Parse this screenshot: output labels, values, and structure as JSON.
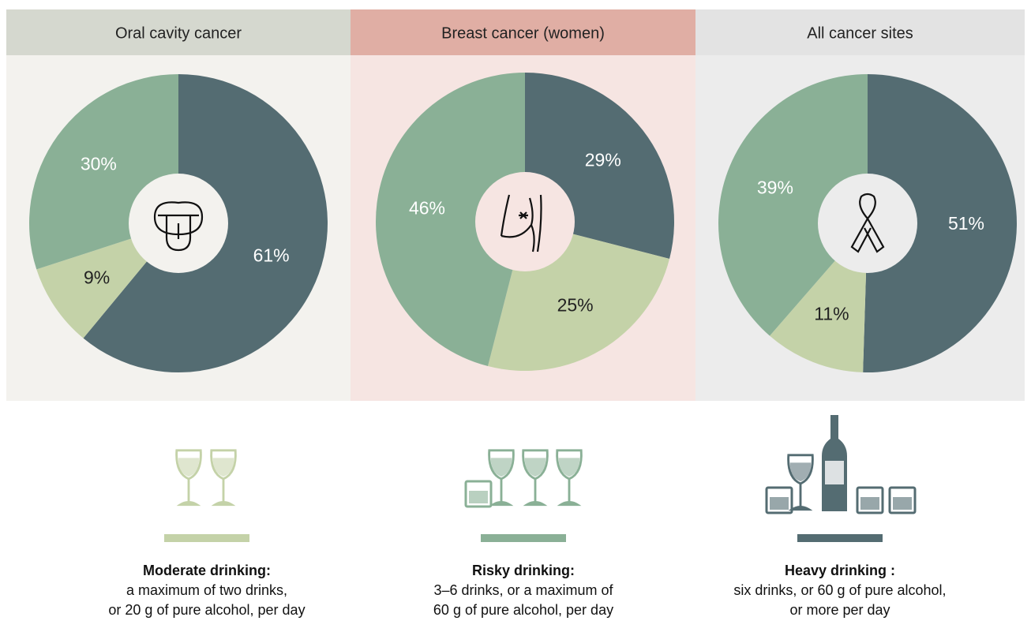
{
  "chart_data": [
    {
      "type": "pie",
      "title": "Oral cavity cancer",
      "values": [
        61,
        9,
        30
      ],
      "value_labels": [
        "61%",
        "9%",
        "30%"
      ],
      "colors": [
        "#546c72",
        "#c4d2a8",
        "#8ab096"
      ]
    },
    {
      "type": "pie",
      "title": "Breast cancer (women)",
      "values": [
        29,
        25,
        46
      ],
      "value_labels": [
        "29%",
        "25%",
        "46%"
      ],
      "colors": [
        "#546c72",
        "#c4d2a8",
        "#8ab096"
      ]
    },
    {
      "type": "pie",
      "title": "All cancer sites",
      "values": [
        51,
        11,
        39
      ],
      "value_labels": [
        "51%",
        "11%",
        "39%"
      ],
      "colors": [
        "#546c72",
        "#c4d2a8",
        "#8ab096"
      ]
    }
  ],
  "drinking_levels": [
    {
      "title": "Moderate drinking:",
      "description": [
        "a maximum of two drinks,",
        "or 20 g of pure alcohol, per day"
      ],
      "color": "#c4d2a8"
    },
    {
      "title": "Risky drinking:",
      "description": [
        "3–6 drinks, or a maximum of",
        "60 g of pure alcohol, per day"
      ],
      "color": "#8ab096"
    },
    {
      "title": "Heavy drinking :",
      "description": [
        "six drinks, or 60 g of pure alcohol,",
        "or more per day"
      ],
      "color": "#546c72"
    }
  ]
}
